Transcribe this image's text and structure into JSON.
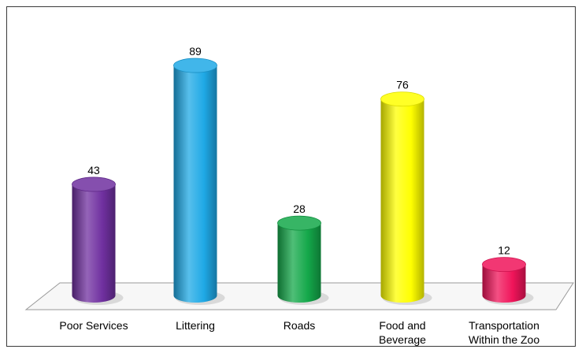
{
  "chart_data": {
    "type": "bar",
    "style": "3d-cylinder",
    "categories": [
      [
        "Poor Services"
      ],
      [
        "Littering"
      ],
      [
        "Roads"
      ],
      [
        "Food and",
        "Beverage"
      ],
      [
        "Transportation",
        "Within the Zoo"
      ]
    ],
    "values": [
      43,
      89,
      28,
      76,
      12
    ],
    "value_labels": [
      "43",
      "89",
      "28",
      "76",
      "12"
    ],
    "colors": [
      "#7030a0",
      "#1fa9e6",
      "#14a84a",
      "#ffff00",
      "#f0145a"
    ],
    "title": "",
    "xlabel": "",
    "ylabel": "",
    "ylim": [
      0,
      100
    ],
    "grid": false,
    "legend": "none"
  }
}
